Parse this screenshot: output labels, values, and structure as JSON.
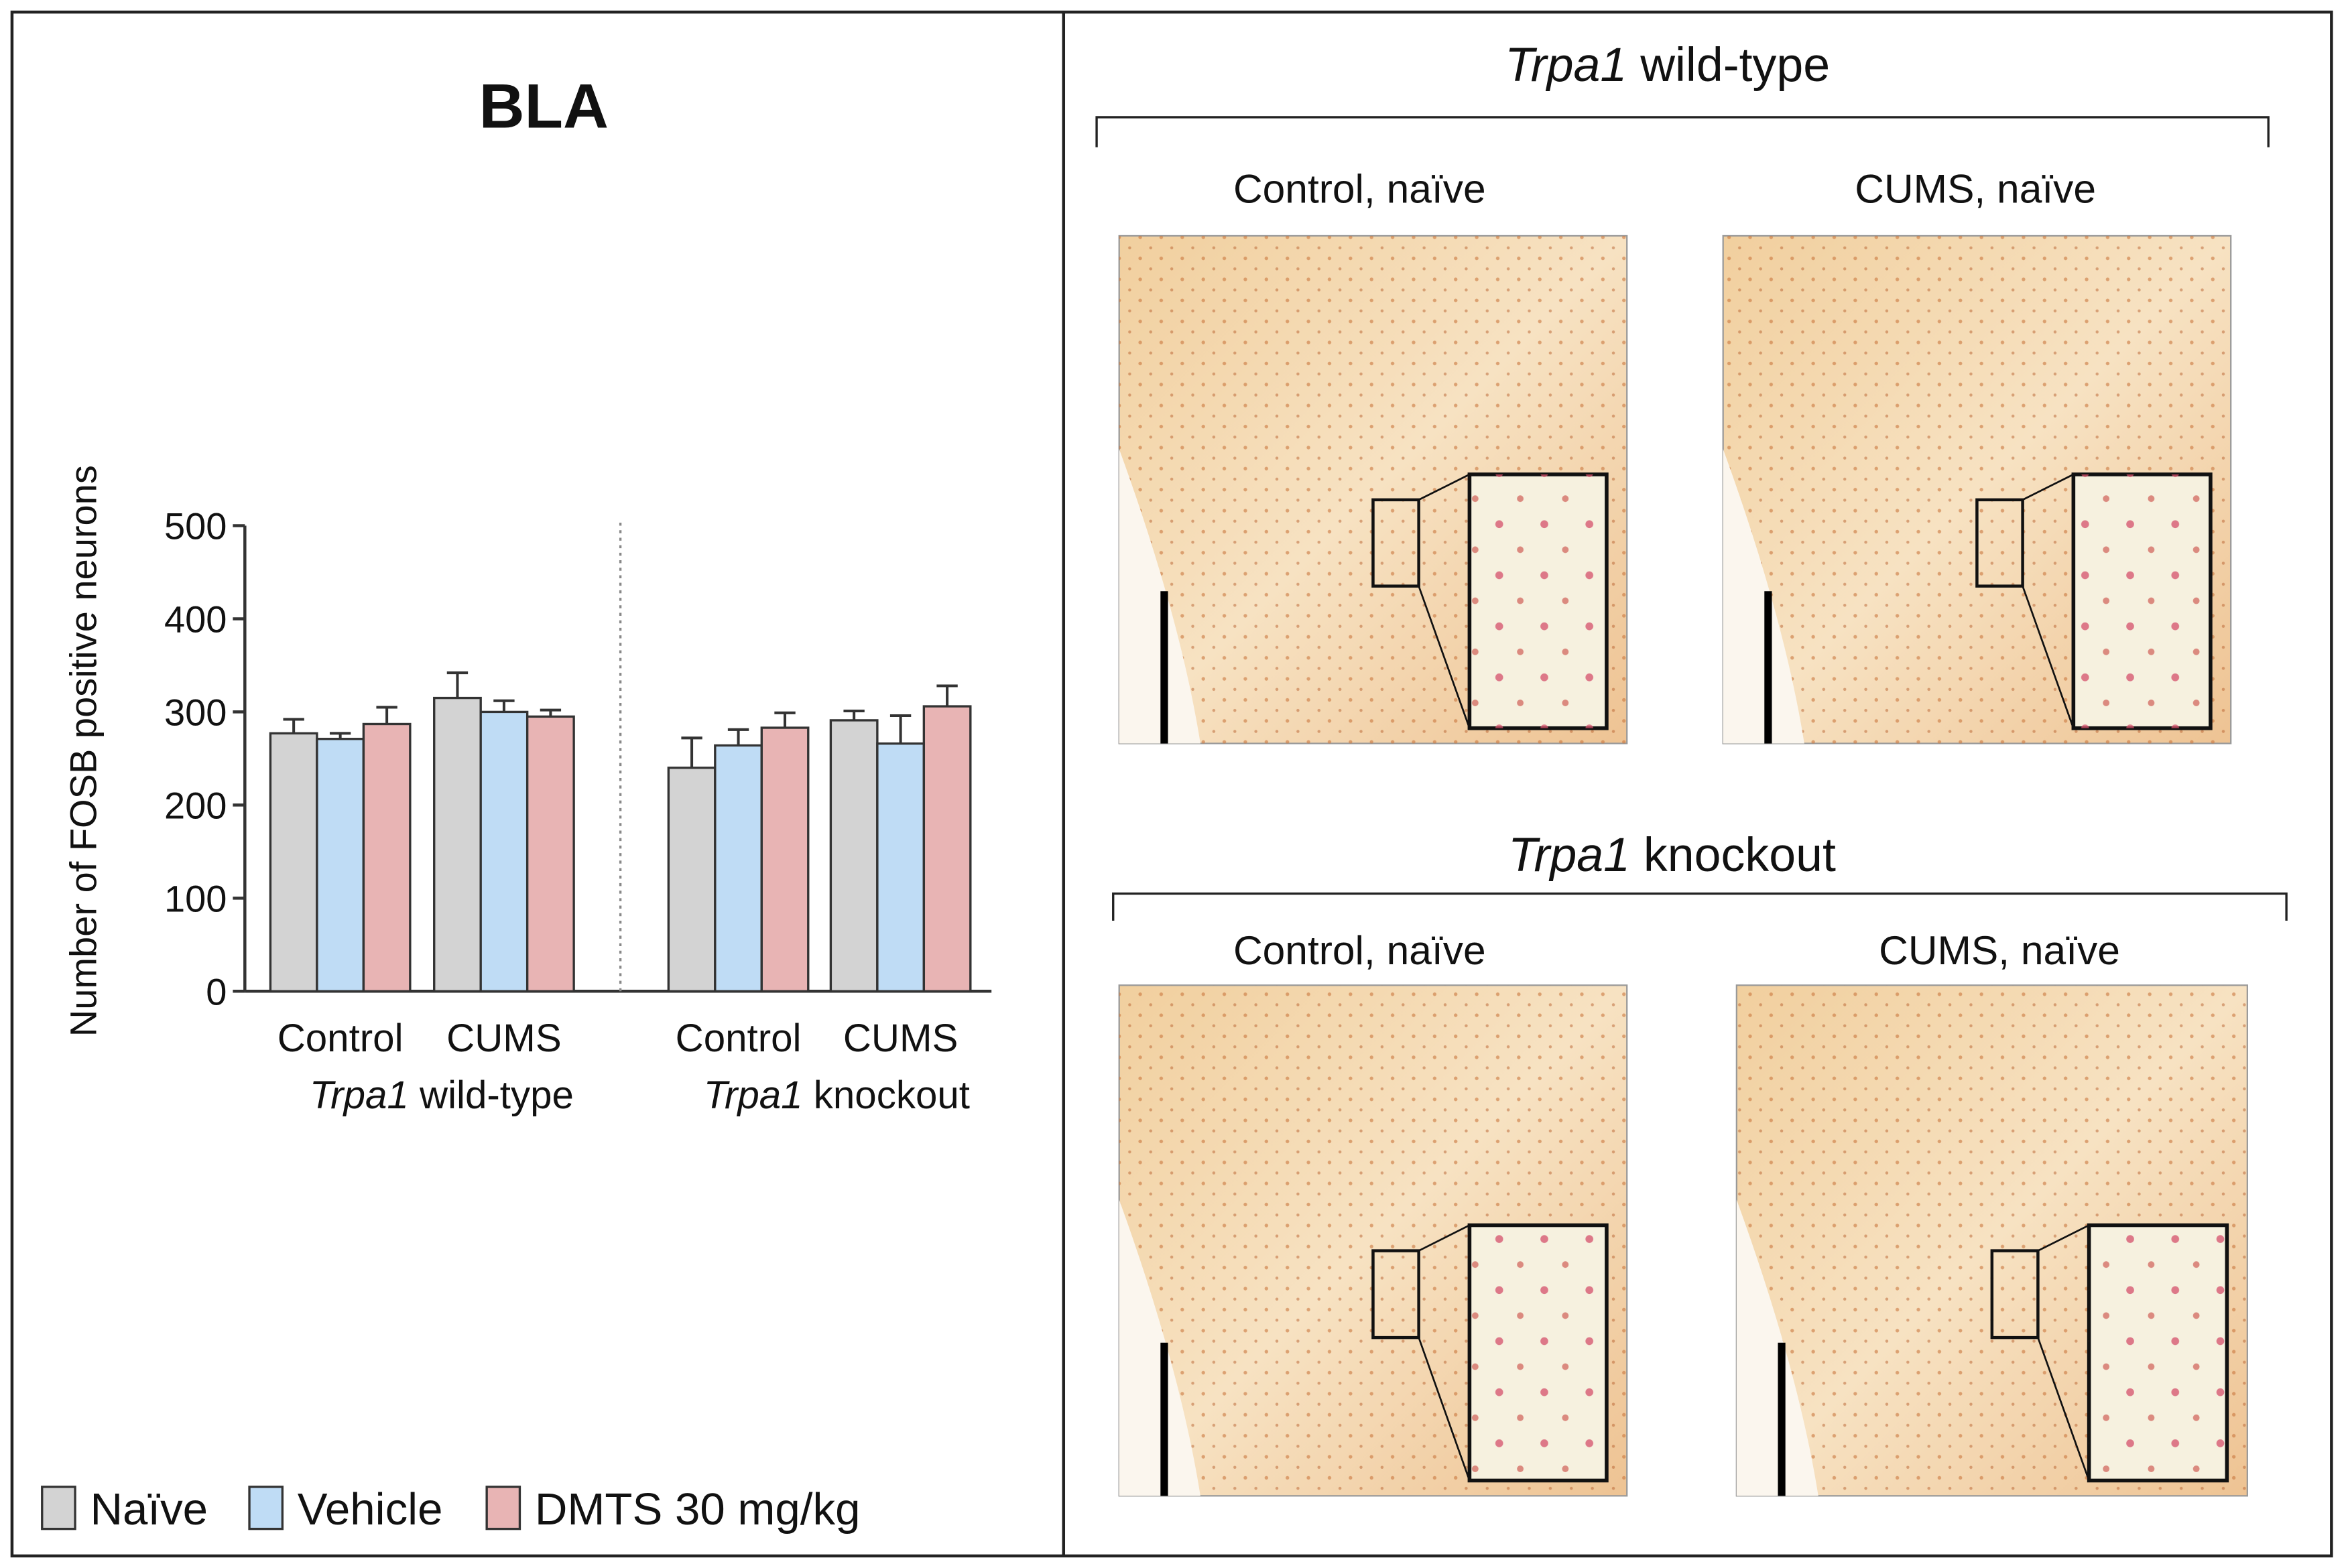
{
  "chart_data": {
    "type": "bar",
    "title": "BLA",
    "ylabel": "Number of FOSB positive neurons",
    "categories": [
      "Control",
      "CUMS",
      "Control",
      "CUMS"
    ],
    "group_labels": [
      [
        "Trpa1",
        "wild-type"
      ],
      [
        "Trpa1",
        "knockout"
      ]
    ],
    "series": [
      {
        "name": "Naïve",
        "color": "#d3d3d3",
        "values": [
          277,
          315,
          240,
          291
        ],
        "errors": [
          15,
          27,
          32,
          10
        ]
      },
      {
        "name": "Vehicle",
        "color": "#bfdcf5",
        "values": [
          271,
          300,
          264,
          266
        ],
        "errors": [
          6,
          12,
          17,
          30
        ]
      },
      {
        "name": "DMTS 30 mg/kg",
        "color": "#e8b4b4",
        "values": [
          287,
          295,
          283,
          306
        ],
        "errors": [
          18,
          7,
          16,
          22
        ]
      }
    ],
    "ylim": [
      0,
      500
    ],
    "yticks": [
      0,
      100,
      200,
      300,
      400,
      500
    ],
    "legend": "bottom"
  },
  "panels": [
    {
      "title": [
        "Trpa1",
        "wild-type"
      ],
      "images": [
        "Control, naïve",
        "CUMS, naïve"
      ]
    },
    {
      "title": [
        "Trpa1",
        "knockout"
      ],
      "images": [
        "Control, naïve",
        "CUMS, naïve"
      ]
    }
  ]
}
